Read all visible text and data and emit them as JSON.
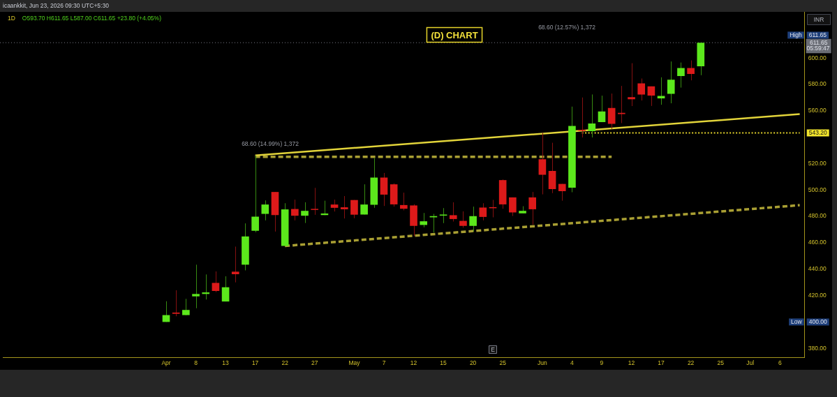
{
  "chart_data": {
    "type": "candlestick",
    "title": "(D) CHART",
    "subtitle": "1D O593.70 H611.65 L587.00 C611.65 +23.80 (+4.05%)",
    "categories": [
      null,
      null,
      null,
      null,
      null,
      null,
      null,
      null,
      null,
      null,
      null,
      null,
      null,
      null,
      null,
      null,
      "Apr",
      null,
      null,
      "8",
      null,
      null,
      "13",
      null,
      null,
      "17",
      null,
      null,
      "22",
      null,
      null,
      "27",
      null,
      null,
      null,
      "May",
      null,
      null,
      "7",
      null,
      null,
      "12",
      null,
      null,
      "15",
      null,
      null,
      "20",
      null,
      null,
      "25",
      null,
      null,
      null,
      "Jun",
      null,
      null,
      "4",
      null,
      null,
      "9",
      null,
      null,
      "12",
      null,
      null,
      "17",
      null,
      null,
      "22",
      null,
      null,
      "25",
      null,
      null,
      "Jul",
      null,
      null,
      "6",
      null,
      null
    ],
    "series": [
      {
        "ohlc": [
          null,
          null,
          null,
          null,
          null,
          null,
          null,
          null,
          null,
          null,
          null,
          null,
          null,
          null,
          null,
          null,
          [
            400.0,
            415.7,
            400.0,
            405.2
          ],
          [
            407.1,
            424.0,
            404.3,
            406.2
          ],
          [
            405.2,
            417.5,
            405.0,
            409.1
          ],
          [
            419.4,
            443.4,
            410.4,
            421.2
          ],
          [
            421.2,
            436.0,
            417.0,
            422.4
          ],
          [
            429.6,
            438.3,
            422.6,
            423.5
          ],
          [
            415.5,
            434.6,
            415.5,
            426.3
          ],
          [
            438.1,
            457.1,
            430.0,
            436.2
          ],
          [
            443.4,
            474.7,
            439.1,
            464.8
          ],
          [
            469.1,
            526.2,
            468.0,
            479.8
          ],
          [
            481.9,
            492.1,
            477.0,
            489.0
          ],
          [
            498.5,
            498.5,
            468.5,
            481.0
          ],
          [
            457.6,
            490.0,
            457.6,
            485.3
          ],
          [
            485.6,
            492.7,
            477.0,
            480.5
          ],
          [
            480.5,
            490.7,
            475.0,
            484.2
          ],
          [
            485.4,
            501.6,
            481.2,
            484.9
          ],
          [
            481.0,
            491.9,
            480.9,
            482.2
          ],
          [
            489.0,
            492.7,
            483.7,
            486.5
          ],
          [
            486.9,
            495.4,
            478.4,
            485.4
          ],
          [
            492.4,
            492.4,
            478.6,
            481.3
          ],
          [
            481.4,
            504.3,
            481.4,
            489.0
          ],
          [
            488.8,
            524.3,
            486.5,
            509.4
          ],
          [
            509.4,
            512.9,
            487.9,
            496.5
          ],
          [
            504.3,
            505.0,
            487.4,
            489.1
          ],
          [
            488.6,
            498.0,
            484.6,
            485.8
          ],
          [
            488.3,
            489.2,
            465.0,
            472.8
          ],
          [
            473.5,
            482.6,
            471.7,
            476.3
          ],
          [
            479.3,
            481.9,
            467.7,
            480.2
          ],
          [
            480.6,
            486.3,
            474.9,
            481.0
          ],
          [
            480.9,
            490.7,
            476.1,
            478.0
          ],
          [
            476.6,
            483.8,
            471.4,
            472.8
          ],
          [
            472.8,
            487.4,
            468.6,
            480.2
          ],
          [
            486.7,
            490.0,
            477.0,
            479.6
          ],
          [
            487.0,
            492.5,
            479.3,
            486.2
          ],
          [
            507.5,
            508.0,
            485.8,
            489.1
          ],
          [
            494.4,
            494.4,
            480.3,
            483.0
          ],
          [
            482.3,
            487.7,
            482.3,
            484.2
          ],
          [
            494.4,
            498.5,
            473.8,
            485.4
          ],
          [
            523.3,
            543.3,
            496.7,
            511.6
          ],
          [
            514.5,
            535.8,
            497.6,
            500.7
          ],
          [
            504.6,
            504.6,
            491.9,
            499.1
          ],
          [
            501.8,
            563.2,
            498.3,
            548.6
          ],
          [
            545.5,
            570.1,
            539.8,
            544.8
          ],
          [
            544.6,
            572.4,
            539.8,
            550.4
          ],
          [
            551.4,
            571.5,
            551.4,
            559.5
          ],
          [
            562.2,
            573.1,
            546.3,
            550.2
          ],
          [
            558.5,
            578.9,
            550.7,
            557.6
          ],
          [
            570.4,
            596.1,
            563.6,
            568.8
          ],
          [
            580.8,
            584.5,
            567.8,
            572.4
          ],
          [
            578.5,
            578.5,
            563.7,
            571.5
          ],
          [
            569.4,
            585.4,
            564.6,
            571.3
          ],
          [
            572.9,
            597.4,
            565.7,
            583.6
          ],
          [
            586.3,
            596.6,
            577.6,
            592.4
          ],
          [
            592.4,
            598.2,
            583.1,
            587.9
          ],
          [
            593.7,
            611.65,
            587.0,
            611.65
          ],
          null,
          null,
          null,
          null,
          null,
          null,
          null,
          null,
          null,
          null
        ],
        "colors": [
          null,
          null,
          null,
          null,
          null,
          null,
          null,
          null,
          null,
          null,
          null,
          null,
          null,
          null,
          null,
          null,
          "#5ce81c",
          "#dd1a1a",
          "#5ce81c",
          "#5ce81c",
          "#5ce81c",
          "#dd1a1a",
          "#5ce81c",
          "#dd1a1a",
          "#5ce81c",
          "#5ce81c",
          "#5ce81c",
          "#dd1a1a",
          "#5ce81c",
          "#dd1a1a",
          "#5ce81c",
          "#dd1a1a",
          "#5ce81c",
          "#dd1a1a",
          "#dd1a1a",
          "#dd1a1a",
          "#5ce81c",
          "#5ce81c",
          "#dd1a1a",
          "#dd1a1a",
          "#dd1a1a",
          "#dd1a1a",
          "#5ce81c",
          "#5ce81c",
          "#5ce81c",
          "#dd1a1a",
          "#dd1a1a",
          "#5ce81c",
          "#dd1a1a",
          "#dd1a1a",
          "#dd1a1a",
          "#dd1a1a",
          "#5ce81c",
          "#dd1a1a",
          "#dd1a1a",
          "#dd1a1a",
          "#dd1a1a",
          "#5ce81c",
          "#dd1a1a",
          "#5ce81c",
          "#5ce81c",
          "#dd1a1a",
          "#dd1a1a",
          "#dd1a1a",
          "#dd1a1a",
          "#dd1a1a",
          "#5ce81c",
          "#5ce81c",
          "#5ce81c",
          "#dd1a1a",
          "#5ce81c",
          null,
          null,
          null,
          null,
          null,
          null,
          null,
          null,
          null,
          null
        ]
      },
      {
        "type": "line",
        "color": "#e2d43a",
        "line_style": "solid",
        "values": [
          null,
          null,
          null,
          null,
          null,
          null,
          null,
          null,
          null,
          null,
          null,
          null,
          null,
          null,
          null,
          null,
          null,
          null,
          null,
          null,
          null,
          null,
          null,
          null,
          null,
          526.2,
          null,
          null,
          null,
          null,
          null,
          null,
          null,
          null,
          null,
          null,
          null,
          null,
          null,
          null,
          null,
          null,
          null,
          null,
          null,
          null,
          null,
          null,
          null,
          null,
          null,
          null,
          null,
          null,
          null,
          null,
          null,
          null,
          null,
          null,
          null,
          null,
          null,
          null,
          null,
          null,
          null,
          null,
          null,
          null,
          null,
          null,
          null,
          null,
          null,
          null,
          null,
          null,
          null,
          null,
          557.5
        ]
      },
      {
        "type": "line",
        "color": "#a99f33",
        "line_style": "dashed",
        "values": [
          null,
          null,
          null,
          null,
          null,
          null,
          null,
          null,
          null,
          null,
          null,
          null,
          null,
          null,
          null,
          null,
          null,
          null,
          null,
          null,
          null,
          null,
          null,
          null,
          null,
          null,
          null,
          null,
          457.6,
          null,
          null,
          null,
          null,
          null,
          null,
          null,
          null,
          null,
          null,
          null,
          null,
          null,
          null,
          null,
          null,
          null,
          null,
          null,
          null,
          null,
          null,
          null,
          null,
          null,
          null,
          null,
          null,
          null,
          null,
          null,
          null,
          null,
          null,
          null,
          null,
          null,
          null,
          null,
          null,
          null,
          null,
          null,
          null,
          null,
          null,
          null,
          null,
          null,
          null,
          null,
          488.5
        ]
      },
      {
        "type": "line",
        "color": "#a99f33",
        "line_style": "dashed",
        "values": [
          null,
          null,
          null,
          null,
          null,
          null,
          null,
          null,
          null,
          null,
          null,
          null,
          null,
          null,
          null,
          null,
          null,
          null,
          null,
          null,
          null,
          null,
          null,
          null,
          null,
          525.2,
          null,
          null,
          null,
          null,
          null,
          null,
          null,
          null,
          null,
          null,
          null,
          null,
          null,
          null,
          null,
          null,
          null,
          null,
          null,
          null,
          null,
          null,
          null,
          null,
          null,
          null,
          null,
          null,
          null,
          null,
          null,
          null,
          null,
          null,
          null,
          525.2,
          null,
          null,
          null,
          null,
          null,
          null,
          null,
          null,
          null,
          null,
          null,
          null,
          null,
          null,
          null,
          null,
          null,
          null,
          null
        ]
      },
      {
        "type": "line",
        "color": "#e6d52c",
        "line_style": "dotted",
        "values": [
          null,
          null,
          null,
          null,
          null,
          null,
          null,
          null,
          null,
          null,
          null,
          null,
          null,
          null,
          null,
          null,
          null,
          null,
          null,
          null,
          null,
          null,
          null,
          null,
          null,
          null,
          null,
          null,
          null,
          null,
          null,
          null,
          null,
          null,
          null,
          null,
          null,
          null,
          null,
          null,
          null,
          null,
          null,
          null,
          null,
          null,
          null,
          null,
          null,
          null,
          null,
          null,
          null,
          null,
          null,
          null,
          null,
          null,
          543.2,
          null,
          null,
          null,
          null,
          null,
          null,
          null,
          null,
          null,
          null,
          null,
          null,
          null,
          null,
          null,
          null,
          null,
          null,
          null,
          null,
          null,
          543.2
        ]
      }
    ],
    "ylim": [
      373,
      635
    ],
    "yticks": [
      {
        "value": 380,
        "label": "380.00"
      },
      {
        "value": 420,
        "label": "420.00"
      },
      {
        "value": 440,
        "label": "440.00"
      },
      {
        "value": 460,
        "label": "460.00"
      },
      {
        "value": 480,
        "label": "480.00"
      },
      {
        "value": 500,
        "label": "500.00"
      },
      {
        "value": 520,
        "label": "520.00"
      },
      {
        "value": 560,
        "label": "560.00"
      },
      {
        "value": 580,
        "label": "580.00"
      },
      {
        "value": 600,
        "label": "600.00"
      }
    ],
    "ref_lines": [
      {
        "axis": "y",
        "value": 611.65,
        "label": "611.65",
        "color": "#787b86",
        "line_style": "dotted"
      }
    ],
    "annotations": [
      "icaankkit, Jun 23, 2026 09:30 UTC+5:30",
      "68.60 (14.99%) 1,372",
      "68.60 (12.57%) 1,372",
      {
        "text": "High",
        "y": 611.65
      },
      "611.65",
      "05:59:47",
      {
        "text": "Low",
        "y": 400
      },
      {
        "text": "400.00",
        "y": 400
      },
      {
        "text": "543.20",
        "y": 543.2
      },
      "INR",
      "E"
    ],
    "grid": false,
    "legend": false
  }
}
